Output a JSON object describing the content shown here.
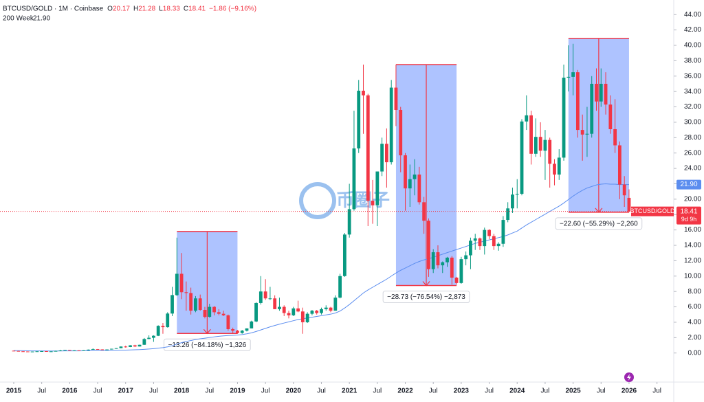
{
  "chart_data": {
    "type": "candlestick",
    "header": "BTCUSD/GOLD · 1M · Coinbase",
    "ohlc_letters": [
      "O",
      "H",
      "L",
      "C"
    ],
    "change_label": "−1.86 (−9.16%)",
    "symbol": "BTCUSD/GOLD",
    "countdown": "9d 9h",
    "watermark": "币圈子",
    "up_color": "#089981",
    "down_color": "#f23645",
    "x": [
      "2015-01",
      "2015-02",
      "2015-03",
      "2015-04",
      "2015-05",
      "2015-06",
      "2015-07",
      "2015-08",
      "2015-09",
      "2015-10",
      "2015-11",
      "2015-12",
      "2016-01",
      "2016-02",
      "2016-03",
      "2016-04",
      "2016-05",
      "2016-06",
      "2016-07",
      "2016-08",
      "2016-09",
      "2016-10",
      "2016-11",
      "2016-12",
      "2017-01",
      "2017-02",
      "2017-03",
      "2017-04",
      "2017-05",
      "2017-06",
      "2017-07",
      "2017-08",
      "2017-09",
      "2017-10",
      "2017-11",
      "2017-12",
      "2018-01",
      "2018-02",
      "2018-03",
      "2018-04",
      "2018-05",
      "2018-06",
      "2018-07",
      "2018-08",
      "2018-09",
      "2018-10",
      "2018-11",
      "2018-12",
      "2019-01",
      "2019-02",
      "2019-03",
      "2019-04",
      "2019-05",
      "2019-06",
      "2019-07",
      "2019-08",
      "2019-09",
      "2019-10",
      "2019-11",
      "2019-12",
      "2020-01",
      "2020-02",
      "2020-03",
      "2020-04",
      "2020-05",
      "2020-06",
      "2020-07",
      "2020-08",
      "2020-09",
      "2020-10",
      "2020-11",
      "2020-12",
      "2021-01",
      "2021-02",
      "2021-03",
      "2021-04",
      "2021-05",
      "2021-06",
      "2021-07",
      "2021-08",
      "2021-09",
      "2021-10",
      "2021-11",
      "2021-12",
      "2022-01",
      "2022-02",
      "2022-03",
      "2022-04",
      "2022-05",
      "2022-06",
      "2022-07",
      "2022-08",
      "2022-09",
      "2022-10",
      "2022-11",
      "2022-12",
      "2023-01",
      "2023-02",
      "2023-03",
      "2023-04",
      "2023-05",
      "2023-06",
      "2023-07",
      "2023-08",
      "2023-09",
      "2023-10",
      "2023-11",
      "2023-12",
      "2024-01",
      "2024-02",
      "2024-03",
      "2024-04",
      "2024-05",
      "2024-06",
      "2024-07",
      "2024-08",
      "2024-09",
      "2024-10",
      "2024-11",
      "2024-12",
      "2025-01",
      "2025-02",
      "2025-03",
      "2025-04",
      "2025-05",
      "2025-06",
      "2025-07",
      "2025-08",
      "2025-09",
      "2025-10",
      "2025-11",
      "2025-12",
      "2026-01"
    ],
    "candles": [
      [
        0.3,
        0.32,
        0.24,
        0.27
      ],
      [
        0.27,
        0.28,
        0.21,
        0.22
      ],
      [
        0.22,
        0.24,
        0.19,
        0.2
      ],
      [
        0.2,
        0.21,
        0.18,
        0.19
      ],
      [
        0.19,
        0.2,
        0.18,
        0.19
      ],
      [
        0.19,
        0.23,
        0.19,
        0.22
      ],
      [
        0.22,
        0.26,
        0.21,
        0.24
      ],
      [
        0.24,
        0.25,
        0.19,
        0.2
      ],
      [
        0.2,
        0.22,
        0.19,
        0.21
      ],
      [
        0.21,
        0.3,
        0.21,
        0.27
      ],
      [
        0.27,
        0.42,
        0.27,
        0.33
      ],
      [
        0.33,
        0.42,
        0.31,
        0.4
      ],
      [
        0.4,
        0.42,
        0.32,
        0.33
      ],
      [
        0.33,
        0.37,
        0.32,
        0.35
      ],
      [
        0.35,
        0.36,
        0.32,
        0.33
      ],
      [
        0.33,
        0.36,
        0.33,
        0.35
      ],
      [
        0.35,
        0.45,
        0.34,
        0.44
      ],
      [
        0.44,
        0.6,
        0.43,
        0.51
      ],
      [
        0.51,
        0.52,
        0.44,
        0.47
      ],
      [
        0.47,
        0.48,
        0.41,
        0.43
      ],
      [
        0.43,
        0.47,
        0.42,
        0.46
      ],
      [
        0.46,
        0.56,
        0.45,
        0.55
      ],
      [
        0.55,
        0.64,
        0.54,
        0.63
      ],
      [
        0.63,
        0.86,
        0.62,
        0.84
      ],
      [
        0.84,
        0.95,
        0.7,
        0.78
      ],
      [
        0.78,
        1.02,
        0.77,
        1.0
      ],
      [
        1.0,
        1.07,
        0.77,
        0.85
      ],
      [
        0.85,
        1.09,
        0.84,
        1.07
      ],
      [
        1.07,
        1.95,
        1.05,
        1.82
      ],
      [
        1.82,
        2.3,
        1.8,
        1.98
      ],
      [
        1.98,
        2.3,
        1.45,
        2.24
      ],
      [
        2.24,
        3.6,
        2.2,
        3.53
      ],
      [
        3.53,
        3.9,
        2.5,
        3.36
      ],
      [
        3.36,
        5.3,
        3.3,
        5.13
      ],
      [
        5.13,
        8.6,
        4.8,
        7.53
      ],
      [
        7.53,
        15.0,
        7.4,
        10.3
      ],
      [
        10.3,
        13.0,
        7.0,
        7.9
      ],
      [
        7.9,
        9.3,
        5.5,
        7.8
      ],
      [
        7.8,
        8.5,
        5.0,
        5.5
      ],
      [
        5.5,
        7.4,
        5.3,
        7.1
      ],
      [
        7.1,
        7.6,
        5.5,
        5.6
      ],
      [
        5.6,
        6.0,
        4.5,
        4.7
      ],
      [
        4.7,
        6.4,
        4.6,
        6.0
      ],
      [
        6.0,
        6.1,
        4.9,
        5.3
      ],
      [
        5.3,
        5.7,
        4.9,
        5.1
      ],
      [
        5.1,
        5.5,
        4.8,
        4.9
      ],
      [
        4.9,
        5.0,
        2.9,
        3.1
      ],
      [
        3.1,
        3.3,
        2.5,
        2.9
      ],
      [
        2.9,
        3.0,
        2.5,
        2.6
      ],
      [
        2.6,
        3.0,
        2.5,
        2.9
      ],
      [
        2.9,
        3.2,
        2.8,
        3.2
      ],
      [
        3.2,
        4.2,
        3.2,
        4.1
      ],
      [
        4.1,
        6.6,
        4.0,
        6.5
      ],
      [
        6.5,
        10.0,
        6.3,
        8.0
      ],
      [
        8.0,
        9.6,
        6.9,
        7.1
      ],
      [
        7.1,
        8.6,
        6.9,
        7.1
      ],
      [
        7.1,
        7.5,
        5.7,
        5.7
      ],
      [
        5.7,
        7.2,
        5.5,
        6.0
      ],
      [
        6.0,
        6.2,
        4.8,
        5.2
      ],
      [
        5.2,
        5.5,
        4.5,
        4.9
      ],
      [
        4.9,
        6.0,
        4.8,
        5.8
      ],
      [
        5.8,
        6.8,
        5.3,
        5.4
      ],
      [
        5.4,
        5.9,
        2.5,
        4.0
      ],
      [
        4.0,
        5.3,
        3.9,
        5.1
      ],
      [
        5.1,
        5.6,
        4.9,
        5.5
      ],
      [
        5.5,
        5.6,
        5.0,
        5.2
      ],
      [
        5.2,
        5.9,
        5.0,
        5.7
      ],
      [
        5.7,
        6.2,
        5.5,
        5.9
      ],
      [
        5.9,
        6.0,
        5.3,
        5.5
      ],
      [
        5.5,
        7.5,
        5.5,
        7.2
      ],
      [
        7.2,
        10.3,
        7.1,
        10.0
      ],
      [
        10.0,
        15.6,
        9.9,
        15.4
      ],
      [
        15.4,
        22.0,
        15.0,
        18.7
      ],
      [
        18.7,
        31.5,
        18.5,
        26.6
      ],
      [
        26.6,
        35.5,
        26.0,
        34.1
      ],
      [
        34.1,
        37.5,
        28.5,
        33.5
      ],
      [
        33.5,
        33.7,
        16.5,
        19.8
      ],
      [
        19.8,
        22.5,
        16.8,
        19.2
      ],
      [
        19.2,
        23.6,
        16.5,
        23.6
      ],
      [
        23.6,
        28.0,
        23.0,
        27.2
      ],
      [
        27.2,
        29.2,
        21.5,
        24.8
      ],
      [
        24.8,
        35.5,
        24.5,
        34.5
      ],
      [
        34.5,
        37.5,
        29.5,
        31.6
      ],
      [
        31.6,
        32.0,
        23.5,
        25.7
      ],
      [
        25.7,
        26.0,
        18.5,
        21.4
      ],
      [
        21.4,
        24.5,
        19.0,
        22.6
      ],
      [
        22.6,
        25.2,
        20.5,
        23.2
      ],
      [
        23.2,
        24.2,
        19.3,
        19.6
      ],
      [
        19.6,
        20.3,
        15.5,
        17.2
      ],
      [
        17.2,
        17.5,
        9.9,
        10.9
      ],
      [
        10.9,
        13.5,
        10.4,
        13.1
      ],
      [
        13.1,
        14.0,
        11.0,
        11.4
      ],
      [
        11.4,
        11.9,
        10.4,
        11.8
      ],
      [
        11.8,
        12.5,
        11.2,
        12.4
      ],
      [
        12.4,
        12.6,
        8.9,
        9.8
      ],
      [
        9.8,
        9.9,
        8.9,
        9.1
      ],
      [
        9.1,
        12.5,
        9.0,
        12.2
      ],
      [
        12.2,
        13.2,
        11.4,
        12.7
      ],
      [
        12.7,
        15.0,
        10.9,
        14.6
      ],
      [
        14.6,
        15.5,
        13.4,
        14.9
      ],
      [
        14.9,
        15.0,
        13.4,
        13.9
      ],
      [
        13.9,
        16.3,
        12.8,
        16.0
      ],
      [
        16.0,
        16.1,
        14.8,
        15.2
      ],
      [
        15.2,
        15.5,
        13.4,
        13.9
      ],
      [
        13.9,
        14.4,
        13.3,
        14.2
      ],
      [
        14.2,
        17.8,
        13.8,
        17.3
      ],
      [
        17.3,
        19.6,
        17.0,
        18.8
      ],
      [
        18.8,
        21.5,
        18.2,
        20.6
      ],
      [
        20.6,
        22.6,
        18.8,
        20.7
      ],
      [
        20.7,
        30.4,
        20.5,
        30.1
      ],
      [
        30.1,
        33.5,
        29.0,
        30.9
      ],
      [
        30.9,
        31.5,
        24.5,
        25.9
      ],
      [
        25.9,
        30.5,
        25.5,
        28.1
      ],
      [
        28.1,
        30.0,
        25.5,
        26.3
      ],
      [
        26.3,
        29.0,
        22.5,
        27.7
      ],
      [
        27.7,
        28.0,
        21.5,
        24.6
      ],
      [
        24.6,
        25.2,
        21.8,
        23.2
      ],
      [
        23.2,
        26.5,
        22.5,
        25.4
      ],
      [
        25.4,
        37.5,
        25.0,
        35.8
      ],
      [
        35.8,
        40.0,
        34.0,
        35.9
      ],
      [
        35.9,
        40.2,
        33.5,
        36.5
      ],
      [
        36.5,
        36.8,
        28.0,
        29.0
      ],
      [
        29.0,
        31.0,
        25.0,
        28.4
      ],
      [
        28.4,
        32.0,
        25.5,
        28.5
      ],
      [
        28.5,
        36.0,
        28.0,
        35.0
      ],
      [
        35.0,
        37.0,
        31.5,
        32.7
      ],
      [
        32.7,
        37.0,
        32.0,
        35.0
      ],
      [
        35.0,
        36.5,
        31.0,
        32.3
      ],
      [
        32.3,
        33.5,
        28.5,
        29.1
      ],
      [
        29.1,
        33.0,
        26.0,
        27.0
      ],
      [
        27.0,
        27.5,
        20.0,
        21.9
      ],
      [
        21.9,
        23.0,
        19.0,
        20.5
      ],
      [
        20.17,
        21.28,
        18.33,
        18.41
      ]
    ],
    "series": [
      {
        "name": "200 Week",
        "color": "#5b8def",
        "value_label": "21.90",
        "values": [
          0.32,
          0.31,
          0.3,
          0.29,
          0.28,
          0.27,
          0.27,
          0.26,
          0.26,
          0.26,
          0.26,
          0.27,
          0.27,
          0.28,
          0.28,
          0.29,
          0.29,
          0.3,
          0.31,
          0.32,
          0.33,
          0.34,
          0.35,
          0.37,
          0.38,
          0.4,
          0.42,
          0.44,
          0.48,
          0.52,
          0.57,
          0.63,
          0.7,
          0.8,
          0.95,
          1.15,
          1.35,
          1.5,
          1.62,
          1.75,
          1.85,
          1.93,
          2.02,
          2.1,
          2.17,
          2.23,
          2.27,
          2.3,
          2.33,
          2.4,
          2.5,
          2.62,
          2.8,
          3.0,
          3.2,
          3.4,
          3.58,
          3.75,
          3.9,
          4.05,
          4.2,
          4.35,
          4.45,
          4.55,
          4.65,
          4.75,
          4.85,
          4.95,
          5.05,
          5.2,
          5.45,
          5.85,
          6.3,
          6.8,
          7.3,
          7.8,
          8.2,
          8.55,
          8.9,
          9.25,
          9.6,
          10.0,
          10.4,
          10.75,
          11.05,
          11.35,
          11.65,
          11.9,
          12.1,
          12.25,
          12.45,
          12.65,
          12.85,
          13.05,
          13.25,
          13.45,
          13.65,
          13.85,
          14.05,
          14.25,
          14.4,
          14.55,
          14.7,
          14.85,
          15.0,
          15.15,
          15.35,
          15.6,
          15.85,
          16.25,
          16.65,
          17.0,
          17.35,
          17.7,
          18.05,
          18.4,
          18.75,
          19.1,
          19.5,
          19.95,
          20.4,
          20.8,
          21.15,
          21.45,
          21.65,
          21.85,
          21.95,
          22.0,
          21.95,
          21.95,
          21.9,
          21.9,
          21.9
        ]
      }
    ],
    "ylim": [
      -3.6,
      45
    ],
    "yticks": [
      {
        "value": 0,
        "label": "0.00"
      },
      {
        "value": 2,
        "label": "2.00"
      },
      {
        "value": 4,
        "label": "4.00"
      },
      {
        "value": 6,
        "label": "6.00"
      },
      {
        "value": 8,
        "label": "8.00"
      },
      {
        "value": 10,
        "label": "10.00"
      },
      {
        "value": 12,
        "label": "12.00"
      },
      {
        "value": 14,
        "label": "14.00"
      },
      {
        "value": 16,
        "label": "16.00"
      },
      {
        "value": 18,
        "label": "18.00"
      },
      {
        "value": 20,
        "label": "20.00"
      },
      {
        "value": 22,
        "label": "22.00"
      },
      {
        "value": 24,
        "label": "24.00"
      },
      {
        "value": 26,
        "label": "26.00"
      },
      {
        "value": 28,
        "label": "28.00"
      },
      {
        "value": 30,
        "label": "30.00"
      },
      {
        "value": 32,
        "label": "32.00"
      },
      {
        "value": 34,
        "label": "34.00"
      },
      {
        "value": 36,
        "label": "36.00"
      },
      {
        "value": 38,
        "label": "38.00"
      },
      {
        "value": 40,
        "label": "40.00"
      },
      {
        "value": 42,
        "label": "42.00"
      },
      {
        "value": 44,
        "label": "44.00"
      }
    ],
    "xticks": [
      {
        "value": "2015-01",
        "label": "2015"
      },
      {
        "value": "2015-07",
        "label": "Jul"
      },
      {
        "value": "2016-01",
        "label": "2016"
      },
      {
        "value": "2016-07",
        "label": "Jul"
      },
      {
        "value": "2017-01",
        "label": "2017"
      },
      {
        "value": "2017-07",
        "label": "Jul"
      },
      {
        "value": "2018-01",
        "label": "2018"
      },
      {
        "value": "2018-07",
        "label": "Jul"
      },
      {
        "value": "2019-01",
        "label": "2019"
      },
      {
        "value": "2019-07",
        "label": "Jul"
      },
      {
        "value": "2020-01",
        "label": "2020"
      },
      {
        "value": "2020-07",
        "label": "Jul"
      },
      {
        "value": "2021-01",
        "label": "2021"
      },
      {
        "value": "2021-07",
        "label": "Jul"
      },
      {
        "value": "2022-01",
        "label": "2022"
      },
      {
        "value": "2022-07",
        "label": "Jul"
      },
      {
        "value": "2023-01",
        "label": "2023"
      },
      {
        "value": "2023-07",
        "label": "Jul"
      },
      {
        "value": "2024-01",
        "label": "2024"
      },
      {
        "value": "2024-07",
        "label": "Jul"
      },
      {
        "value": "2025-01",
        "label": "2025"
      },
      {
        "value": "2025-07",
        "label": "Jul"
      },
      {
        "value": "2026-01",
        "label": "2026"
      },
      {
        "value": "2026-07",
        "label": "Jul"
      }
    ],
    "grid": false,
    "measures": [
      {
        "x_from": "2017-12",
        "x_to": "2019-01",
        "y_from": 15.8,
        "y_to": 2.54,
        "label": "−13.26 (−84.18%) −1,326"
      },
      {
        "x_from": "2021-11",
        "x_to": "2022-12",
        "y_from": 37.5,
        "y_to": 8.77,
        "label": "−28.73 (−76.54%) −2,873"
      },
      {
        "x_from": "2024-12",
        "x_to": "2026-01",
        "y_from": 40.9,
        "y_to": 18.3,
        "label": "−22.60 (−55.29%) −2,260"
      }
    ]
  }
}
